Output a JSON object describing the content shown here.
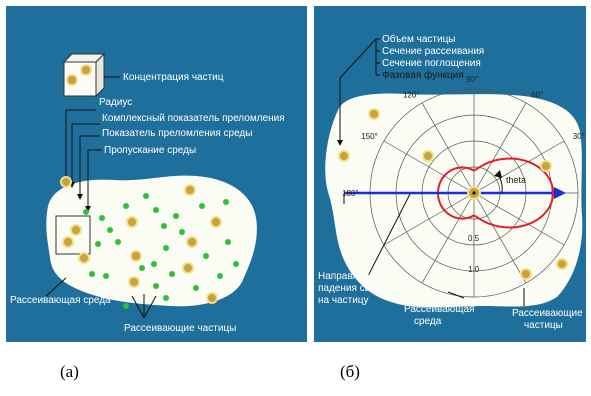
{
  "colors": {
    "background": "#1f6f9c",
    "medium": "#fbfcf4",
    "large_particle": "#c8a23a",
    "small_particle": "#2fbf3a",
    "scatter_curve": "#e0202a",
    "incident_ray": "#1a2fd8"
  },
  "panel_a": {
    "caption": "(а)",
    "labels": {
      "concentration": "Концентрация частиц",
      "radius": "Радиус",
      "complex_index": "Комплексный показатель преломления",
      "medium_index": "Показатель преломления среды",
      "transmission": "Пропускание среды",
      "scattering_medium": "Рассеивающая среда",
      "scattering_particles": "Рассеивающие частицы"
    }
  },
  "panel_b": {
    "caption": "(б)",
    "labels": {
      "particle_volume": "Объем частицы",
      "scattering_cross_section": "Сечение рассеивания",
      "absorption_cross_section": "Сечение поглощения",
      "phase_function": "Фазовая функция",
      "incident_direction_1": "Направление",
      "incident_direction_2": "падения света",
      "incident_direction_3": "на частицу",
      "scattering_medium_1": "Рассеивающая",
      "scattering_medium_2": "среда",
      "scattering_particles_1": "Рассеивающие",
      "scattering_particles_2": "частицы",
      "theta": "theta"
    },
    "angles": [
      "0°",
      "30°",
      "60°",
      "90°",
      "120°",
      "150°",
      "180°"
    ],
    "radial": [
      "0.5",
      "1.0"
    ]
  }
}
